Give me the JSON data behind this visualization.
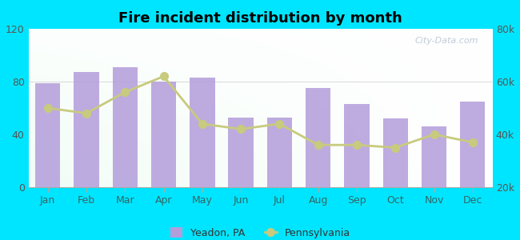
{
  "title": "Fire incident distribution by month",
  "months": [
    "Jan",
    "Feb",
    "Mar",
    "Apr",
    "May",
    "Jun",
    "Jul",
    "Aug",
    "Sep",
    "Oct",
    "Nov",
    "Dec"
  ],
  "yeadon_values": [
    79,
    87,
    91,
    80,
    83,
    53,
    53,
    75,
    63,
    52,
    46,
    65
  ],
  "pennsylvania_values_right": [
    50000,
    48000,
    56000,
    62000,
    44000,
    42000,
    44000,
    36000,
    36000,
    35000,
    40000,
    37000
  ],
  "bar_color": "#b39ddb",
  "line_color": "#c8ca7e",
  "line_marker": "o",
  "outer_background": "#00e5ff",
  "left_ylim": [
    0,
    120
  ],
  "right_ylim": [
    20000,
    80000
  ],
  "left_yticks": [
    0,
    40,
    80,
    120
  ],
  "right_yticks": [
    20000,
    40000,
    60000,
    80000
  ],
  "right_yticklabels": [
    "20k",
    "40k",
    "60k",
    "80k"
  ],
  "legend_yeadon": "Yeadon, PA",
  "legend_pennsylvania": "Pennsylvania",
  "watermark": "City-Data.com"
}
